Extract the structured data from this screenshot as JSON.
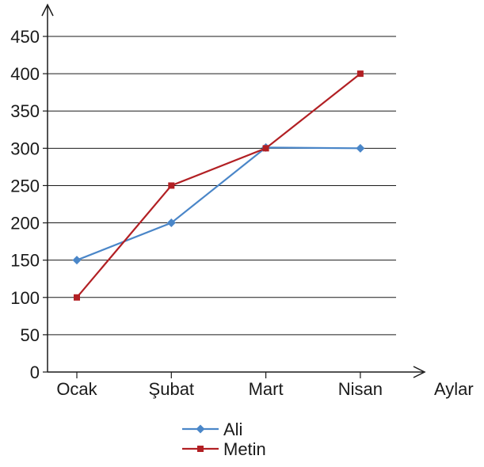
{
  "chart_data": {
    "type": "line",
    "categories": [
      "Ocak",
      "Şubat",
      "Mart",
      "Nisan"
    ],
    "series": [
      {
        "name": "Ali",
        "values": [
          150,
          200,
          301,
          300
        ],
        "color": "#4a86c8",
        "marker": "diamond"
      },
      {
        "name": "Metin",
        "values": [
          100,
          250,
          300,
          400
        ],
        "color": "#b22024",
        "marker": "square"
      }
    ],
    "title": "",
    "xlabel": "Aylar",
    "ylabel": "",
    "ylim": [
      0,
      450
    ],
    "yticks": [
      0,
      50,
      100,
      150,
      200,
      250,
      300,
      350,
      400,
      450
    ],
    "grid": true,
    "legend_position": "bottom"
  }
}
